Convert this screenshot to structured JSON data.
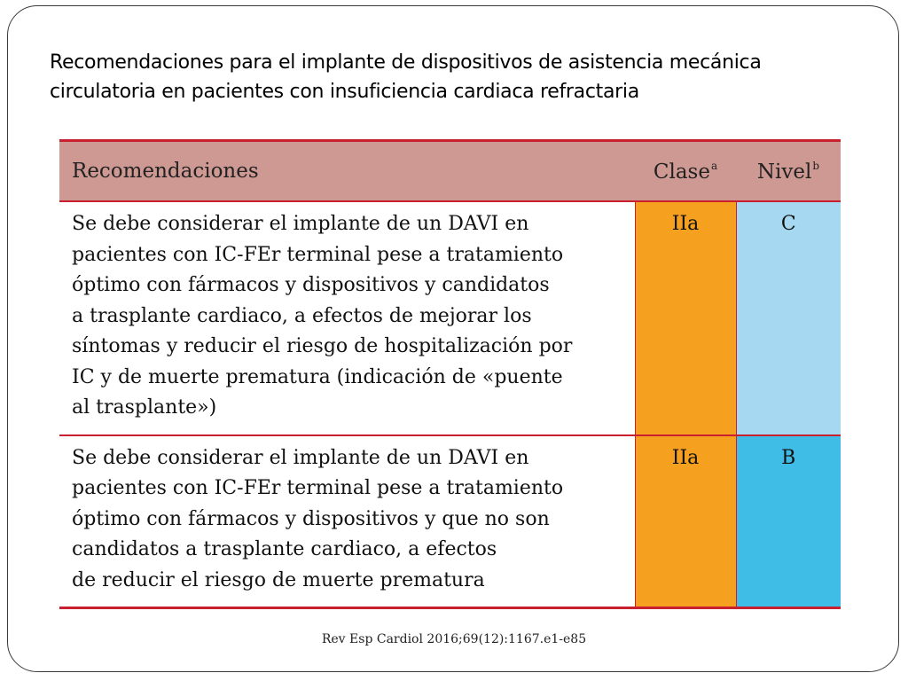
{
  "slide": {
    "title_lines": [
      "Recomendaciones para el implante de dispositivos de asistencia mecánica",
      "circulatoria en pacientes con insuficiencia cardiaca refractaria"
    ]
  },
  "table": {
    "header": {
      "recommendations": "Recomendaciones",
      "class": "Clase",
      "class_note": "a",
      "level": "Nivel",
      "level_note": "b"
    },
    "rows": [
      {
        "text_lines": [
          "Se debe considerar el implante de un DAVI en",
          "pacientes con IC-FEr terminal pese a tratamiento",
          "óptimo con fármacos y dispositivos y candidatos",
          "a trasplante cardiaco, a efectos de mejorar los",
          "síntomas y reducir el riesgo de hospitalización por",
          "IC y de muerte prematura (indicación de «puente",
          "al trasplante»)"
        ],
        "class": "IIa",
        "level": "C"
      },
      {
        "text_lines": [
          "Se debe considerar el implante de un DAVI en",
          "pacientes con IC-FEr terminal pese a tratamiento",
          "óptimo con fármacos y dispositivos y que no son",
          "candidatos a trasplante cardiaco, a efectos",
          "de reducir el riesgo de muerte prematura"
        ],
        "class": "IIa",
        "level": "B"
      }
    ],
    "colors": {
      "header_bg": "#cf9993",
      "rule": "#c8202e",
      "class_bg": "#f6a01f",
      "level_c_bg": "#a6d9f1",
      "level_b_bg": "#3fbde6"
    }
  },
  "citation": "Rev Esp Cardiol 2016;69(12):1167.e1-e85"
}
